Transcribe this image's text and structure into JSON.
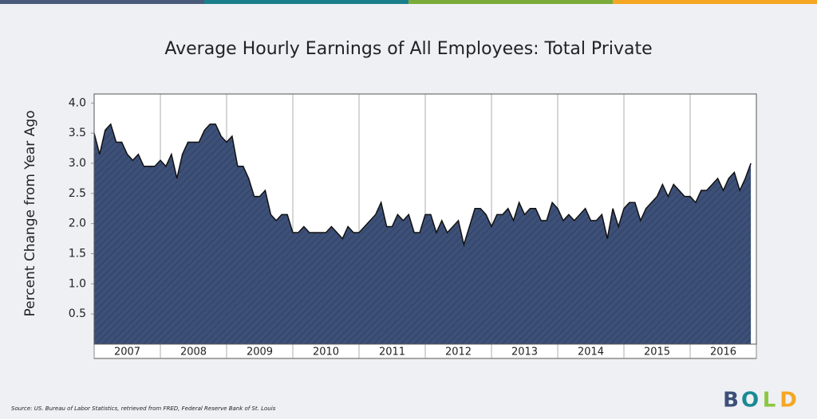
{
  "chart_data": {
    "type": "area",
    "title": "Average Hourly Earnings of All Employees: Total Private",
    "y_label": "Percent Change from Year Ago",
    "source": "Source: US. Bureau of Labor Statistics, retrieved from FRED, Federal Reserve Bank of St. Louis",
    "logo": [
      "B",
      "O",
      "L",
      "D"
    ],
    "logo_colors": [
      "#3d5078",
      "#1a8a94",
      "#8cc63f",
      "#f5a623"
    ],
    "categories": [
      "2007",
      "2008",
      "2009",
      "2010",
      "2011",
      "2012",
      "2013",
      "2014",
      "2015",
      "2016"
    ],
    "xlim": [
      2007,
      2017
    ],
    "ylim": [
      0,
      4.15
    ],
    "yticks": [
      {
        "value": 0.5,
        "label": "0.5"
      },
      {
        "value": 1,
        "label": "1.0"
      },
      {
        "value": 1.5,
        "label": "1.5"
      },
      {
        "value": 2,
        "label": "2.0"
      },
      {
        "value": 2.5,
        "label": "2.5"
      },
      {
        "value": 3,
        "label": "3.0"
      },
      {
        "value": 3.5,
        "label": "3.5"
      },
      {
        "value": 4,
        "label": "4.0"
      }
    ],
    "color": "#3d5078",
    "x": [
      2007,
      2007.083,
      2007.167,
      2007.25,
      2007.333,
      2007.417,
      2007.5,
      2007.583,
      2007.667,
      2007.75,
      2007.833,
      2007.917,
      2008,
      2008.083,
      2008.167,
      2008.25,
      2008.333,
      2008.417,
      2008.5,
      2008.583,
      2008.667,
      2008.75,
      2008.833,
      2008.917,
      2009,
      2009.083,
      2009.167,
      2009.25,
      2009.333,
      2009.417,
      2009.5,
      2009.583,
      2009.667,
      2009.75,
      2009.833,
      2009.917,
      2010,
      2010.083,
      2010.167,
      2010.25,
      2010.333,
      2010.417,
      2010.5,
      2010.583,
      2010.667,
      2010.75,
      2010.833,
      2010.917,
      2011,
      2011.083,
      2011.167,
      2011.25,
      2011.333,
      2011.417,
      2011.5,
      2011.583,
      2011.667,
      2011.75,
      2011.833,
      2011.917,
      2012,
      2012.083,
      2012.167,
      2012.25,
      2012.333,
      2012.417,
      2012.5,
      2012.583,
      2012.667,
      2012.75,
      2012.833,
      2012.917,
      2013,
      2013.083,
      2013.167,
      2013.25,
      2013.333,
      2013.417,
      2013.5,
      2013.583,
      2013.667,
      2013.75,
      2013.833,
      2013.917,
      2014,
      2014.083,
      2014.167,
      2014.25,
      2014.333,
      2014.417,
      2014.5,
      2014.583,
      2014.667,
      2014.75,
      2014.833,
      2014.917,
      2015,
      2015.083,
      2015.167,
      2015.25,
      2015.333,
      2015.417,
      2015.5,
      2015.583,
      2015.667,
      2015.75,
      2015.833,
      2015.917,
      2016,
      2016.083,
      2016.167,
      2016.25,
      2016.333,
      2016.417,
      2016.5,
      2016.583,
      2016.667,
      2016.75,
      2016.833,
      2016.917
    ],
    "values": [
      3.5,
      3.15,
      3.55,
      3.65,
      3.35,
      3.35,
      3.15,
      3.05,
      3.15,
      2.95,
      2.95,
      2.95,
      3.05,
      2.95,
      3.15,
      2.75,
      3.15,
      3.35,
      3.35,
      3.35,
      3.55,
      3.65,
      3.65,
      3.45,
      3.35,
      3.45,
      2.95,
      2.95,
      2.75,
      2.45,
      2.45,
      2.55,
      2.15,
      2.05,
      2.15,
      2.15,
      1.85,
      1.85,
      1.95,
      1.85,
      1.85,
      1.85,
      1.85,
      1.95,
      1.85,
      1.75,
      1.95,
      1.85,
      1.85,
      1.95,
      2.05,
      2.15,
      2.35,
      1.95,
      1.95,
      2.15,
      2.05,
      2.15,
      1.85,
      1.85,
      2.15,
      2.15,
      1.85,
      2.05,
      1.85,
      1.95,
      2.05,
      1.65,
      1.95,
      2.25,
      2.25,
      2.15,
      1.95,
      2.15,
      2.15,
      2.25,
      2.05,
      2.35,
      2.15,
      2.25,
      2.25,
      2.05,
      2.05,
      2.35,
      2.25,
      2.05,
      2.15,
      2.05,
      2.15,
      2.25,
      2.05,
      2.05,
      2.15,
      1.75,
      2.25,
      1.95,
      2.25,
      2.35,
      2.35,
      2.05,
      2.25,
      2.35,
      2.45,
      2.65,
      2.45,
      2.65,
      2.55,
      2.45,
      2.45,
      2.35,
      2.55,
      2.55,
      2.65,
      2.75,
      2.55,
      2.75,
      2.85,
      2.55,
      2.75,
      3.0
    ]
  }
}
